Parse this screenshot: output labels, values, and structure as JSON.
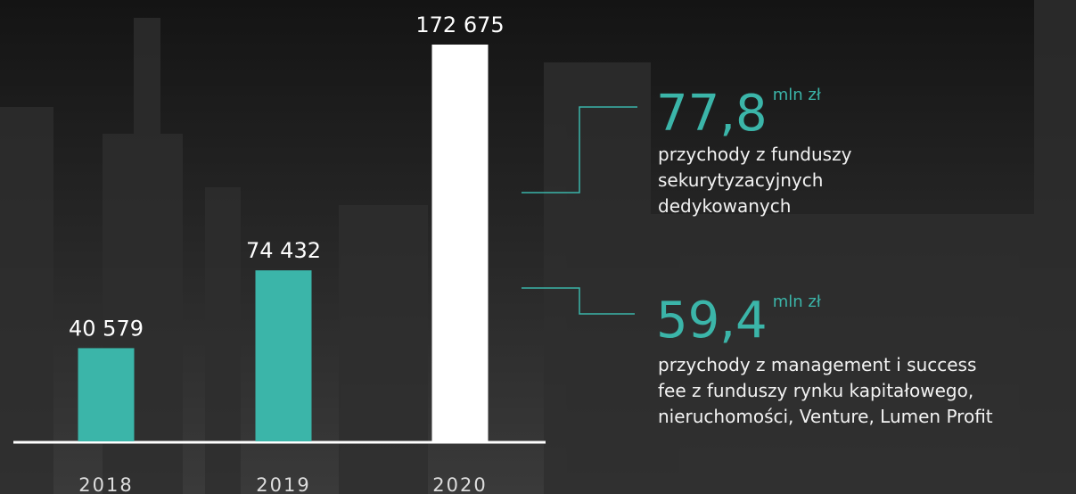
{
  "chart_data": {
    "type": "bar",
    "categories": [
      "2018",
      "2019",
      "2020"
    ],
    "values": [
      40579,
      74432,
      172675
    ],
    "value_labels": [
      "40 579",
      "74 432",
      "172 675"
    ],
    "colors": [
      "#3bb5a9",
      "#3bb5a9",
      "#ffffff"
    ],
    "annotations": [
      {
        "value": "77,8",
        "unit": "mln zł",
        "lines": [
          "przychody z funduszy",
          "sekurytyzacyjnych",
          "dedykowanych"
        ]
      },
      {
        "value": "59,4",
        "unit": "mln zł",
        "lines": [
          "przychody z management i success",
          "fee z funduszy rynku kapitałowego,",
          "nieruchomości, Venture, Lumen Profit"
        ]
      }
    ]
  }
}
